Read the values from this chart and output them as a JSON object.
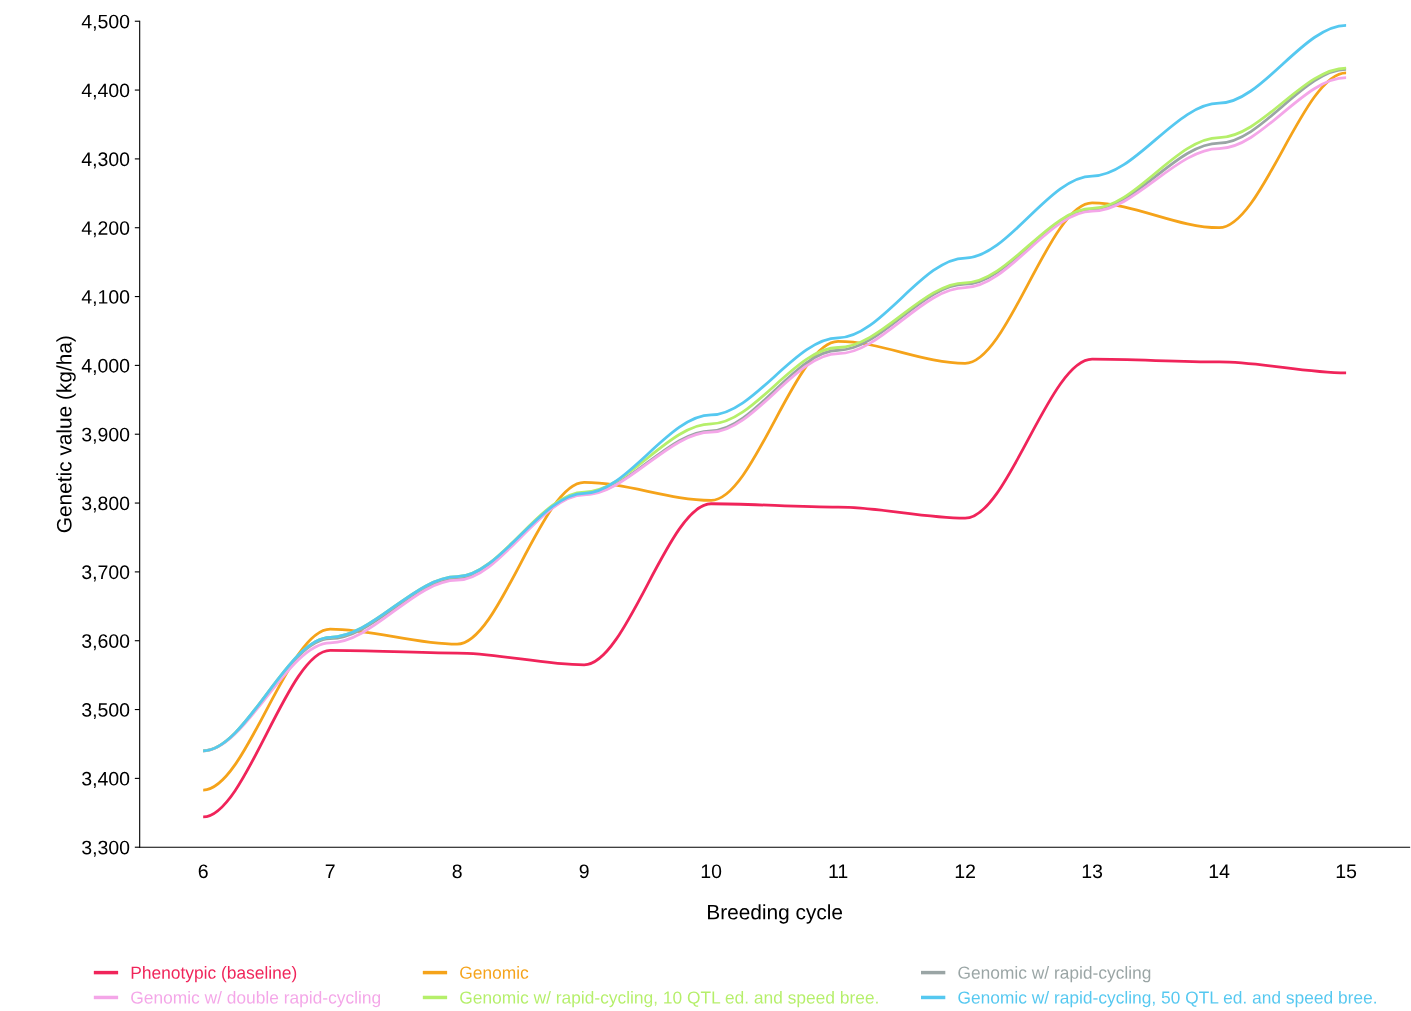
{
  "chart_data": {
    "type": "line",
    "xlabel": "Breeding cycle",
    "ylabel": "Genetic value (kg/ha)",
    "categories": [
      "6",
      "7",
      "8",
      "9",
      "10",
      "11",
      "12",
      "13",
      "14",
      "15"
    ],
    "series": [
      {
        "name": "Phenotypic (baseline)",
        "color": "#f0245a",
        "values": [
          3344,
          3586,
          3582,
          3565,
          3799,
          3794,
          3778,
          4009,
          4005,
          3989
        ]
      },
      {
        "name": "Genomic",
        "color": "#f5a31a",
        "values": [
          3383,
          3617,
          3595,
          3830,
          3804,
          4035,
          4003,
          4236,
          4200,
          4425
        ]
      },
      {
        "name": "Genomic w/ rapid-cycling",
        "color": "#9aa5a5",
        "values": [
          3440,
          3603,
          3690,
          3813,
          3905,
          4022,
          4118,
          4226,
          4323,
          4430
        ]
      },
      {
        "name": "Genomic w/ double rapid-cycling",
        "color": "#f4a6e8",
        "values": [
          3440,
          3597,
          3688,
          3812,
          3903,
          4017,
          4113,
          4224,
          4315,
          4418
        ]
      },
      {
        "name": "Genomic w/ rapid-cycling, 10 QTL ed. and speed bree.",
        "color": "#b5ef6a",
        "values": [
          3440,
          3605,
          3693,
          3816,
          3915,
          4026,
          4120,
          4228,
          4331,
          4432
        ]
      },
      {
        "name": "Genomic w/ rapid-cycling, 50 QTL ed. and speed bree.",
        "color": "#55c8f0",
        "values": [
          3440,
          3605,
          3693,
          3814,
          3928,
          4040,
          4156,
          4275,
          4381,
          4494
        ]
      }
    ],
    "ylim": [
      3300,
      4500
    ],
    "yticks": [
      {
        "value": 3300,
        "label": "3,300"
      },
      {
        "value": 3400,
        "label": "3,400"
      },
      {
        "value": 3500,
        "label": "3,500"
      },
      {
        "value": 3600,
        "label": "3,600"
      },
      {
        "value": 3700,
        "label": "3,700"
      },
      {
        "value": 3800,
        "label": "3,800"
      },
      {
        "value": 3900,
        "label": "3,900"
      },
      {
        "value": 4000,
        "label": "4,000"
      },
      {
        "value": 4100,
        "label": "4,100"
      },
      {
        "value": 4200,
        "label": "4,200"
      },
      {
        "value": 4300,
        "label": "4,300"
      },
      {
        "value": 4400,
        "label": "4,400"
      },
      {
        "value": 4500,
        "label": "4,500"
      }
    ],
    "grid": false,
    "legend": "bottom",
    "marker": "none",
    "line_style": "solid"
  }
}
